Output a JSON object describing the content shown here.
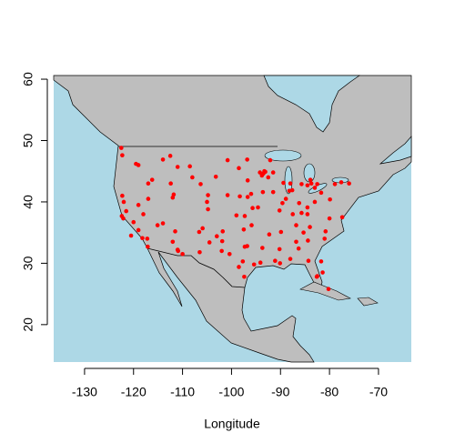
{
  "chart_data": {
    "type": "scatter",
    "x_label": "Longitude",
    "xlim": [
      -136.3,
      -63.3
    ],
    "ylim": [
      13.9,
      60.6
    ],
    "xticks": [
      -130,
      -120,
      -110,
      -100,
      -90,
      -80,
      -70
    ],
    "yticks": [
      20,
      30,
      40,
      50,
      60
    ],
    "point_color": "#ff0000",
    "map_water": "#add8e6",
    "map_land": "#bebebe",
    "x": [
      -122.5,
      -122.3,
      -119.5,
      -119,
      -117,
      -116.2,
      -122.3,
      -122,
      -121.5,
      -122.4,
      -122.1,
      -120,
      -119,
      -118.2,
      -117.2,
      -117.1,
      -120.5,
      -119,
      -118,
      -115.1,
      -114,
      -117,
      -112,
      -111,
      -110.9,
      -110,
      -111.5,
      -112,
      -111.8,
      -112.4,
      -111,
      -108.5,
      -114,
      -112.5,
      -108,
      -106.3,
      -104.8,
      -105,
      -104.8,
      -106.6,
      -105.9,
      -104.5,
      -106.5,
      -103,
      -101.8,
      -101.9,
      -100.4,
      -102,
      -98.5,
      -97.7,
      -97.4,
      -95.4,
      -96.8,
      -97.3,
      -94.1,
      -97.5,
      -95.9,
      -99,
      -97.3,
      -95.7,
      -94.6,
      -96.7,
      -96,
      -98.3,
      -100.8,
      -103.2,
      -100.8,
      -96.8,
      -98.5,
      -96.7,
      -93.3,
      -93.1,
      -93.5,
      -92.5,
      -93.8,
      -94.2,
      -92.1,
      -91.5,
      -89.4,
      -88,
      -87.6,
      -88.2,
      -89.6,
      -90.2,
      -88.9,
      -91.5,
      -93.6,
      -92.3,
      -90.1,
      -91.1,
      -90.2,
      -88,
      -86.8,
      -86.3,
      -86.8,
      -85.7,
      -84.5,
      -84.5,
      -83,
      -81.7,
      -83,
      -84.5,
      -85.7,
      -86.2,
      -87.5,
      -84.4,
      -81,
      -80.8,
      -82.5,
      -81.4,
      -81.7,
      -80.2,
      -82.6,
      -84.3,
      -79.9,
      -78.9,
      -77.6,
      -76,
      -80,
      -77.4,
      -84,
      -85.3,
      -89.9,
      -93.7,
      -82.5,
      -83.7,
      -83.9
    ],
    "y": [
      48.8,
      47.6,
      46.2,
      46,
      43,
      43.6,
      41,
      40,
      38.5,
      37.7,
      37.3,
      36.7,
      35.4,
      34.1,
      34,
      32.7,
      34.5,
      39.5,
      38,
      36.2,
      36.5,
      40.5,
      33.5,
      32.2,
      32,
      31.5,
      35.2,
      40.7,
      41.2,
      43,
      45.7,
      45.8,
      46.9,
      47.5,
      44,
      42.9,
      41.1,
      40,
      38.8,
      35.1,
      35.7,
      33.4,
      31.8,
      34.4,
      35.2,
      33.6,
      31.5,
      32,
      29.4,
      30.3,
      27.8,
      29.8,
      32.8,
      32.7,
      30.1,
      35.5,
      36.2,
      37.8,
      37.7,
      39,
      39.1,
      40.8,
      41.3,
      40.9,
      41.1,
      44.1,
      46.8,
      46.9,
      45.5,
      43.5,
      45,
      44.9,
      44.6,
      44,
      44.3,
      44.8,
      46.8,
      44.8,
      43.1,
      43,
      41.9,
      41.8,
      39.8,
      38.6,
      40.5,
      41.6,
      41.6,
      34.7,
      30,
      30.4,
      32.3,
      30.7,
      33.5,
      32.4,
      36.2,
      38.2,
      38,
      39.1,
      40,
      41.5,
      42.3,
      42.7,
      42.9,
      39.8,
      38,
      33.7,
      34,
      35.2,
      27.9,
      28.5,
      30.3,
      25.8,
      27.8,
      30.4,
      40.4,
      42.9,
      43.2,
      43,
      37.3,
      37.5,
      35.9,
      35,
      35.1,
      32.5,
      42.9,
      43,
      43.6
    ]
  }
}
